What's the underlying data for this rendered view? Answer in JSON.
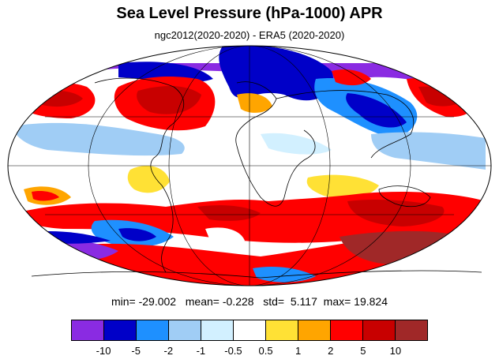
{
  "title": "Sea Level Pressure (hPa-1000) APR",
  "subtitle": "ngc2012(2020-2020) - ERA5 (2020-2020)",
  "stats": {
    "min_label": "min=",
    "min": "-29.002",
    "mean_label": "mean=",
    "mean": "-0.228",
    "std_label": "std=",
    "std": "5.117",
    "max_label": "max=",
    "max": "19.824"
  },
  "colorbar": {
    "colors": [
      "#8a2be2",
      "#0000c8",
      "#1e90ff",
      "#a0cdf5",
      "#d2f0ff",
      "#ffffff",
      "#ffe135",
      "#ffa500",
      "#ff0000",
      "#c80000",
      "#a02828"
    ],
    "labels": [
      "-10",
      "-5",
      "-2",
      "-1",
      "-0.5",
      "0.5",
      "1",
      "2",
      "5",
      "10"
    ]
  },
  "map": {
    "projection": "mollweide",
    "ocean_base_color": "#ffffff",
    "coastline_color": "#000000",
    "gridline_color": "#000000"
  }
}
